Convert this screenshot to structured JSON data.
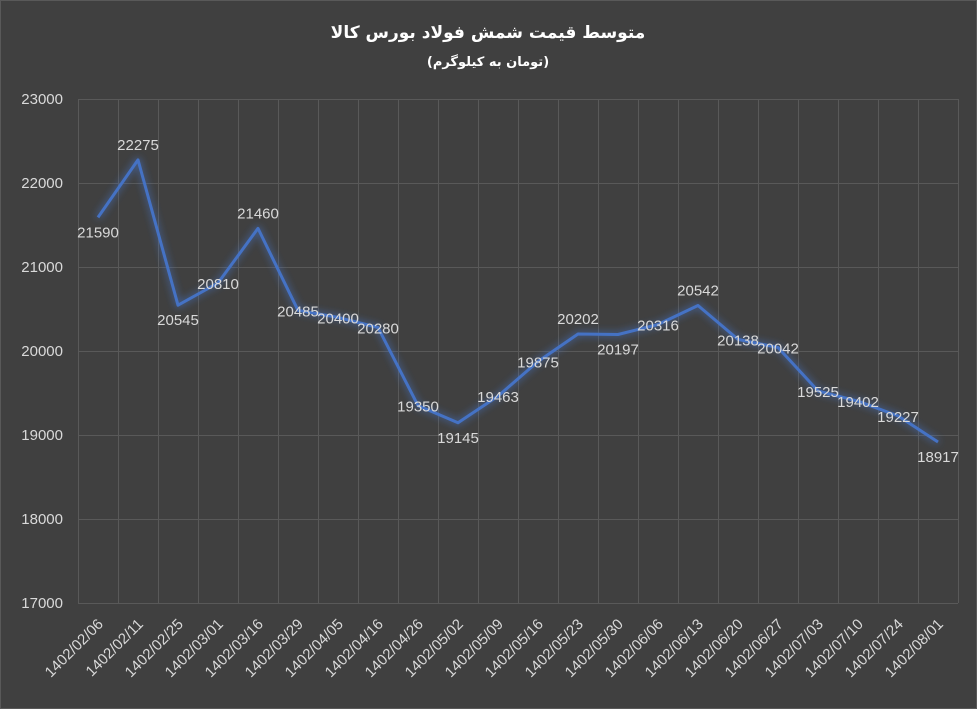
{
  "chart_data": {
    "type": "line",
    "title": "متوسط قیمت شمش فولاد بورس کالا",
    "subtitle": "(تومان به کیلوگرم)",
    "xlabel": "",
    "ylabel": "",
    "ylim": [
      17000,
      23000
    ],
    "yticks": [
      17000,
      18000,
      19000,
      20000,
      21000,
      22000,
      23000
    ],
    "ytick_labels": [
      "17000",
      "18000",
      "19000",
      "20000",
      "21000",
      "22000",
      "23000"
    ],
    "grid": true,
    "legend": "none",
    "categories": [
      "1402/02/06",
      "1402/02/11",
      "1402/02/25",
      "1402/03/01",
      "1402/03/16",
      "1402/03/29",
      "1402/04/05",
      "1402/04/16",
      "1402/04/26",
      "1402/05/02",
      "1402/05/09",
      "1402/05/16",
      "1402/05/23",
      "1402/05/30",
      "1402/06/06",
      "1402/06/13",
      "1402/06/20",
      "1402/06/27",
      "1402/07/03",
      "1402/07/10",
      "1402/07/24",
      "1402/08/01"
    ],
    "series": [
      {
        "values": [
          21590,
          22275,
          20545,
          20810,
          21460,
          20485,
          20400,
          20280,
          19350,
          19145,
          19463,
          19875,
          20202,
          20197,
          20316,
          20542,
          20138,
          20042,
          19525,
          19402,
          19227,
          18917
        ],
        "labels": [
          "21590",
          "22275",
          "20545",
          "20810",
          "21460",
          "20485",
          "20400",
          "20280",
          "19350",
          "19145",
          "19463",
          "19875",
          "20202",
          "20197",
          "20316",
          "20542",
          "20138",
          "20042",
          "19525",
          "19402",
          "19227",
          "18917"
        ],
        "color": "#4472C4"
      }
    ],
    "colors": {
      "background": "#404040",
      "grid": "#595959",
      "text": "#d9d9d9",
      "title": "#ffffff",
      "line": "#4472C4"
    }
  }
}
